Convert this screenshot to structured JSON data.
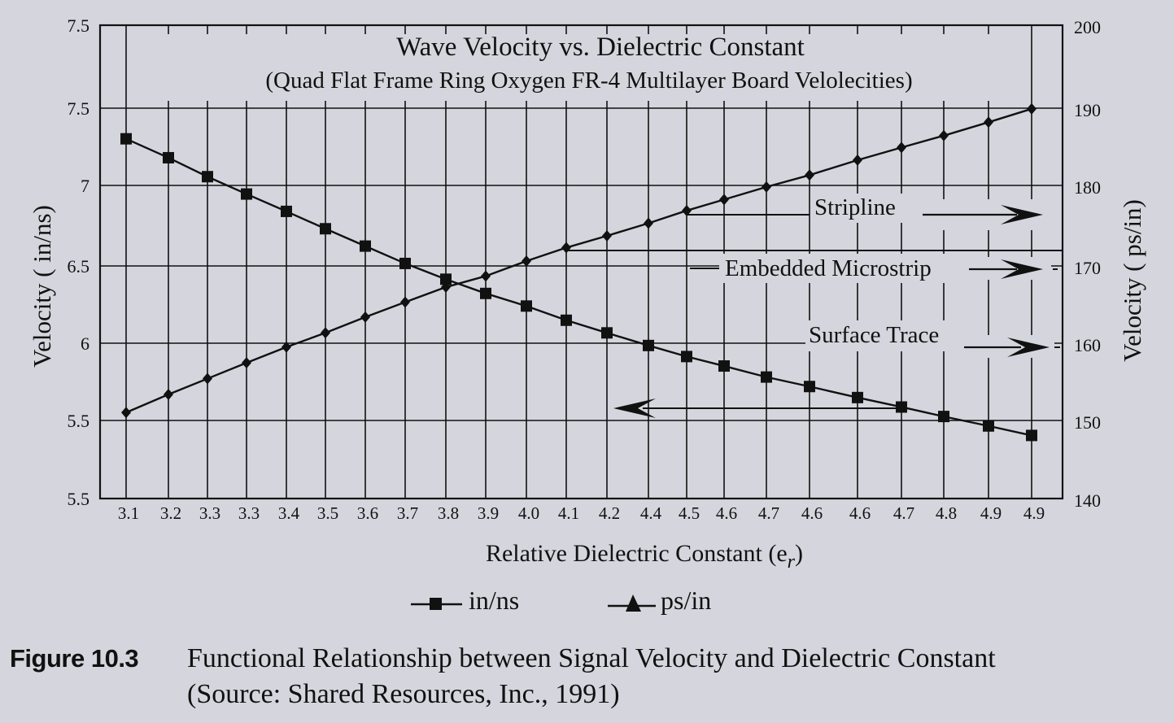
{
  "chart_data": {
    "type": "line",
    "title": "Wave Velocity vs. Dielectric Constant",
    "subtitle": "(Quad Flat Frame Ring Oxygen FR-4 Multilayer Board Velolecities)",
    "xlabel": "Relative Dielectric Constant (e",
    "xlabel_subscript": "r",
    "xlabel_close": ")",
    "ylabel_left": "Velocity ( in/ns)",
    "ylabel_right": "Velocity ( ps/in)",
    "categories": [
      "3.1",
      "3.2",
      "3.3",
      "3.3",
      "3.4",
      "3.5",
      "3.6",
      "3.7",
      "3.8",
      "3.9",
      "4.0",
      "4.1",
      "4.2",
      "4.4",
      "4.5",
      "4.6",
      "4.7",
      "4.6",
      "4.6",
      "4.7",
      "4.8",
      "4.9",
      "4.9"
    ],
    "y_left_ticks": [
      "7.5",
      "7.5",
      "7",
      "6.5",
      "6",
      "5.5",
      "5.5"
    ],
    "y_left_range": [
      5.0,
      8.0
    ],
    "y_right_ticks": [
      "200",
      "190",
      "180",
      "170",
      "160",
      "150",
      "140"
    ],
    "y_right_range": [
      140,
      200
    ],
    "grid": true,
    "legend_position": "bottom",
    "series": [
      {
        "name": "in/ns",
        "axis": "left",
        "marker": "square",
        "values": [
          7.28,
          7.16,
          7.04,
          6.93,
          6.82,
          6.71,
          6.6,
          6.49,
          6.39,
          6.3,
          6.22,
          6.13,
          6.05,
          5.97,
          5.9,
          5.84,
          5.77,
          5.71,
          5.64,
          5.58,
          5.52,
          5.46,
          5.4
        ]
      },
      {
        "name": "ps/in",
        "axis": "right",
        "marker": "triangle",
        "values": [
          150.9,
          153.2,
          155.2,
          157.2,
          159.2,
          161.0,
          163.0,
          164.9,
          166.8,
          168.2,
          170.1,
          171.8,
          173.3,
          174.9,
          176.5,
          177.9,
          179.5,
          181.0,
          182.9,
          184.5,
          186.0,
          187.7,
          189.4
        ]
      }
    ],
    "annotations": [
      {
        "label": "Stripline",
        "direction": "right"
      },
      {
        "label": "Embedded Microstrip",
        "direction": "right"
      },
      {
        "label": "Surface Trace",
        "direction": "right"
      },
      {
        "label": "",
        "direction": "left"
      }
    ]
  },
  "legend": {
    "items": [
      {
        "label": "in/ns",
        "marker": "square"
      },
      {
        "label": "ps/in",
        "marker": "triangle"
      }
    ]
  },
  "caption": {
    "figure_label": "Figure 10.3",
    "text": "Functional Relationship between Signal Velocity and Dielectric Constant",
    "source": "(Source: Shared Resources, Inc., 1991)"
  }
}
